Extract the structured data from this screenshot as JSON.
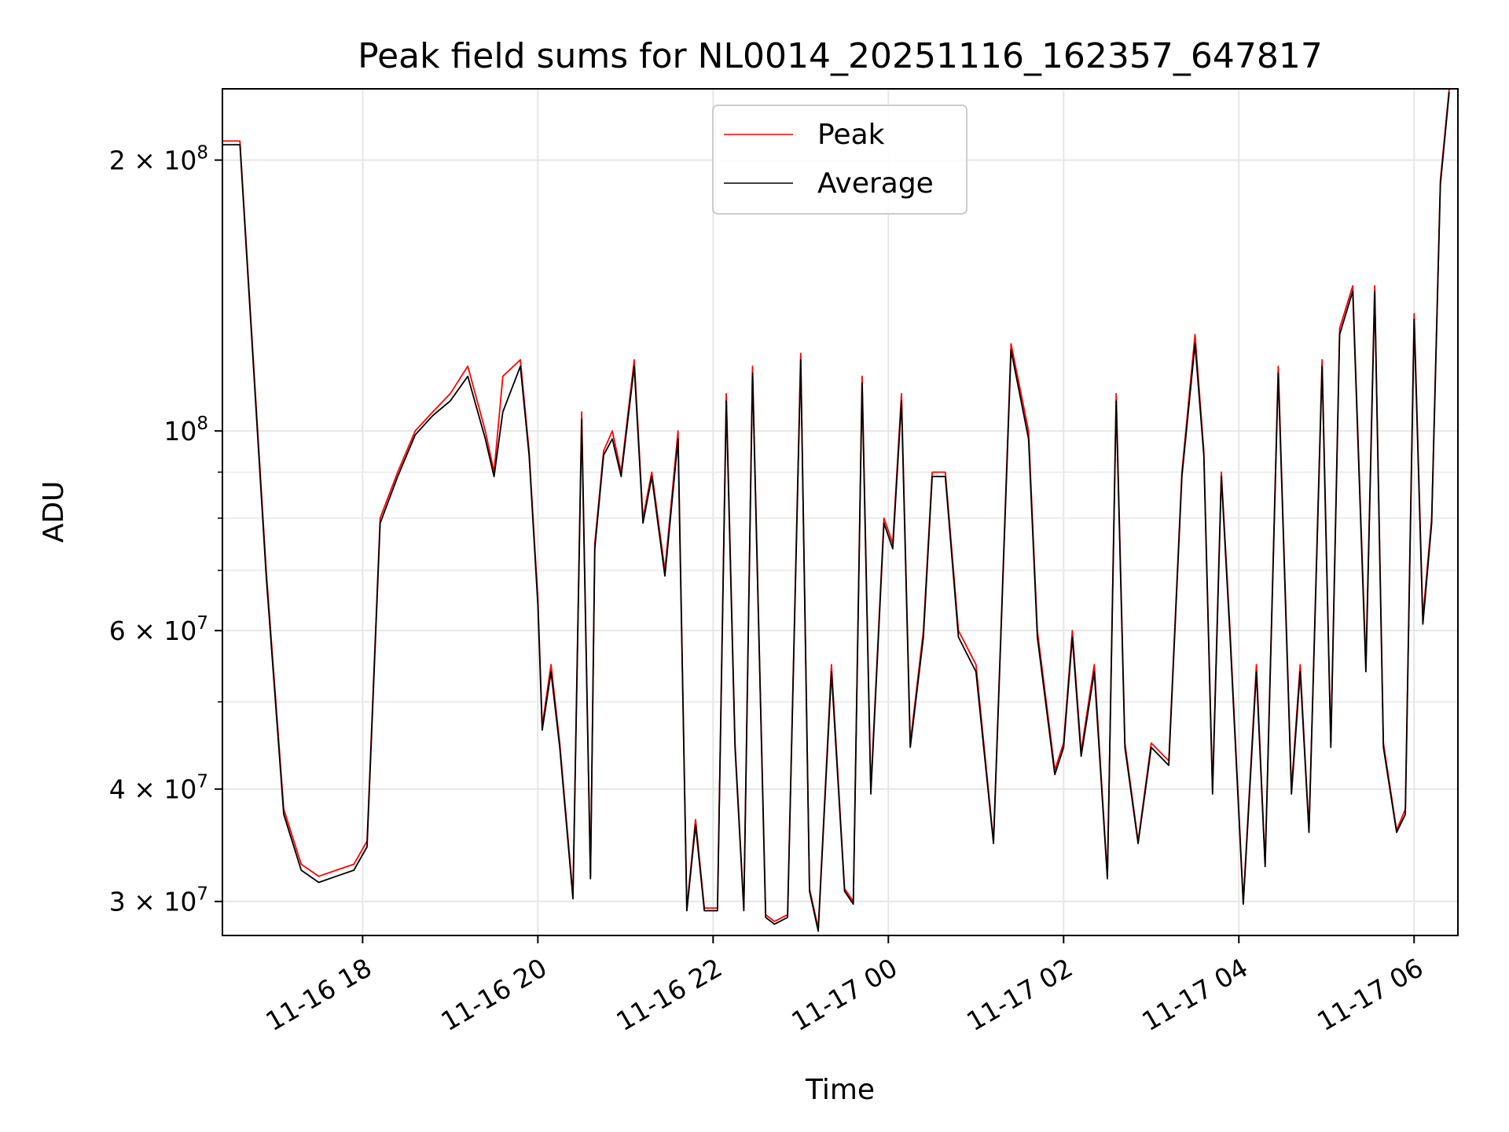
{
  "chart_data": {
    "type": "line",
    "title": "Peak field sums for NL0014_20251116_162357_647817",
    "xlabel": "Time",
    "ylabel": "ADU",
    "yscale": "log",
    "grid": true,
    "legend_position": "top-center",
    "xlim_hours": [
      16.4,
      30.5
    ],
    "ylim": [
      27500000,
      240000000
    ],
    "x_unit": "hours since 2025-11-16 00:00",
    "x_ticks": [
      {
        "value": 18,
        "label": "11-16 18"
      },
      {
        "value": 20,
        "label": "11-16 20"
      },
      {
        "value": 22,
        "label": "11-16 22"
      },
      {
        "value": 24,
        "label": "11-17 00"
      },
      {
        "value": 26,
        "label": "11-17 02"
      },
      {
        "value": 28,
        "label": "11-17 04"
      },
      {
        "value": 30,
        "label": "11-17 06"
      }
    ],
    "y_major_ticks": [
      {
        "value": 30000000,
        "base": "3 × 10",
        "exp": "7"
      },
      {
        "value": 40000000,
        "base": "4 × 10",
        "exp": "7"
      },
      {
        "value": 60000000,
        "base": "6 × 10",
        "exp": "7"
      },
      {
        "value": 100000000,
        "base": "10",
        "exp": "8"
      },
      {
        "value": 200000000,
        "base": "2 × 10",
        "exp": "8"
      }
    ],
    "y_minor_ticks": [
      50000000,
      70000000,
      80000000,
      90000000
    ],
    "series": [
      {
        "name": "Peak",
        "color": "#ff0000",
        "x": [
          16.4,
          16.6,
          16.9,
          17.1,
          17.3,
          17.5,
          17.7,
          17.9,
          18.05,
          18.2,
          18.4,
          18.6,
          18.8,
          19.0,
          19.2,
          19.4,
          19.5,
          19.6,
          19.8,
          19.9,
          20.0,
          20.05,
          20.15,
          20.25,
          20.4,
          20.5,
          20.6,
          20.65,
          20.75,
          20.85,
          20.95,
          21.1,
          21.2,
          21.3,
          21.45,
          21.6,
          21.7,
          21.8,
          21.9,
          22.05,
          22.15,
          22.25,
          22.35,
          22.45,
          22.6,
          22.7,
          22.85,
          23.0,
          23.1,
          23.2,
          23.35,
          23.5,
          23.6,
          23.7,
          23.8,
          23.95,
          24.05,
          24.15,
          24.25,
          24.4,
          24.5,
          24.65,
          24.8,
          25.0,
          25.2,
          25.4,
          25.6,
          25.7,
          25.9,
          26.0,
          26.1,
          26.2,
          26.35,
          26.5,
          26.6,
          26.7,
          26.85,
          27.0,
          27.2,
          27.35,
          27.5,
          27.6,
          27.7,
          27.8,
          27.9,
          28.05,
          28.2,
          28.3,
          28.45,
          28.6,
          28.7,
          28.8,
          28.95,
          29.05,
          29.15,
          29.3,
          29.45,
          29.55,
          29.65,
          29.8,
          29.9,
          30.0,
          30.1,
          30.2,
          30.3,
          30.4
        ],
        "values": [
          210000000,
          210000000,
          70000000,
          38000000,
          33000000,
          32000000,
          32500000,
          33000000,
          35000000,
          80000000,
          90000000,
          100000000,
          105000000,
          110000000,
          118000000,
          100000000,
          90000000,
          115000000,
          120000000,
          95000000,
          65000000,
          47000000,
          55000000,
          45000000,
          30500000,
          105000000,
          32000000,
          75000000,
          95000000,
          100000000,
          90000000,
          120000000,
          80000000,
          90000000,
          70000000,
          100000000,
          29500000,
          37000000,
          29500000,
          29500000,
          110000000,
          45000000,
          29500000,
          118000000,
          29000000,
          28500000,
          29000000,
          122000000,
          31000000,
          28000000,
          55000000,
          31000000,
          30000000,
          115000000,
          40000000,
          80000000,
          75000000,
          110000000,
          45000000,
          60000000,
          90000000,
          90000000,
          60000000,
          55000000,
          35000000,
          125000000,
          100000000,
          60000000,
          42000000,
          45000000,
          60000000,
          44000000,
          55000000,
          32000000,
          110000000,
          45000000,
          35000000,
          45000000,
          43000000,
          90000000,
          128000000,
          95000000,
          40000000,
          90000000,
          60000000,
          30000000,
          55000000,
          33000000,
          118000000,
          40000000,
          55000000,
          36000000,
          120000000,
          45000000,
          130000000,
          145000000,
          55000000,
          145000000,
          45000000,
          36000000,
          38000000,
          135000000,
          62000000,
          80000000,
          190000000,
          240000000
        ]
      },
      {
        "name": "Average",
        "color": "#000000",
        "x": [
          16.4,
          16.6,
          16.9,
          17.1,
          17.3,
          17.5,
          17.7,
          17.9,
          18.05,
          18.2,
          18.4,
          18.6,
          18.8,
          19.0,
          19.2,
          19.4,
          19.5,
          19.6,
          19.8,
          19.9,
          20.0,
          20.05,
          20.15,
          20.25,
          20.4,
          20.5,
          20.6,
          20.65,
          20.75,
          20.85,
          20.95,
          21.1,
          21.2,
          21.3,
          21.45,
          21.6,
          21.7,
          21.8,
          21.9,
          22.05,
          22.15,
          22.25,
          22.35,
          22.45,
          22.6,
          22.7,
          22.85,
          23.0,
          23.1,
          23.2,
          23.35,
          23.5,
          23.6,
          23.7,
          23.8,
          23.95,
          24.05,
          24.15,
          24.25,
          24.4,
          24.5,
          24.65,
          24.8,
          25.0,
          25.2,
          25.4,
          25.6,
          25.7,
          25.9,
          26.0,
          26.1,
          26.2,
          26.35,
          26.5,
          26.6,
          26.7,
          26.85,
          27.0,
          27.2,
          27.35,
          27.5,
          27.6,
          27.7,
          27.8,
          27.9,
          28.05,
          28.2,
          28.3,
          28.45,
          28.6,
          28.7,
          28.8,
          28.95,
          29.05,
          29.15,
          29.3,
          29.45,
          29.55,
          29.65,
          29.8,
          29.9,
          30.0,
          30.1,
          30.2,
          30.3,
          30.4
        ],
        "values": [
          208000000,
          208000000,
          69000000,
          37500000,
          32500000,
          31500000,
          32000000,
          32500000,
          34500000,
          79000000,
          89000000,
          99000000,
          104000000,
          108000000,
          115000000,
          98000000,
          89000000,
          105000000,
          118000000,
          94000000,
          64000000,
          46500000,
          54000000,
          44500000,
          30200000,
          103000000,
          31800000,
          74000000,
          94000000,
          98000000,
          89000000,
          118000000,
          79000000,
          89000000,
          69000000,
          98000000,
          29300000,
          36500000,
          29300000,
          29300000,
          108000000,
          44500000,
          29300000,
          116000000,
          28800000,
          28300000,
          28800000,
          120000000,
          30800000,
          27800000,
          54000000,
          30800000,
          29800000,
          113000000,
          39500000,
          79000000,
          74000000,
          108000000,
          44500000,
          59000000,
          89000000,
          89000000,
          59000000,
          54000000,
          34800000,
          123000000,
          98000000,
          59000000,
          41500000,
          44500000,
          59000000,
          43500000,
          54000000,
          31800000,
          108000000,
          44500000,
          34800000,
          44500000,
          42500000,
          89000000,
          125000000,
          94000000,
          39500000,
          89000000,
          59000000,
          29800000,
          54000000,
          32800000,
          116000000,
          39500000,
          54000000,
          35800000,
          118000000,
          44500000,
          128000000,
          143000000,
          54000000,
          143000000,
          44500000,
          35800000,
          37500000,
          133000000,
          61000000,
          79000000,
          188000000,
          238000000
        ]
      }
    ]
  }
}
